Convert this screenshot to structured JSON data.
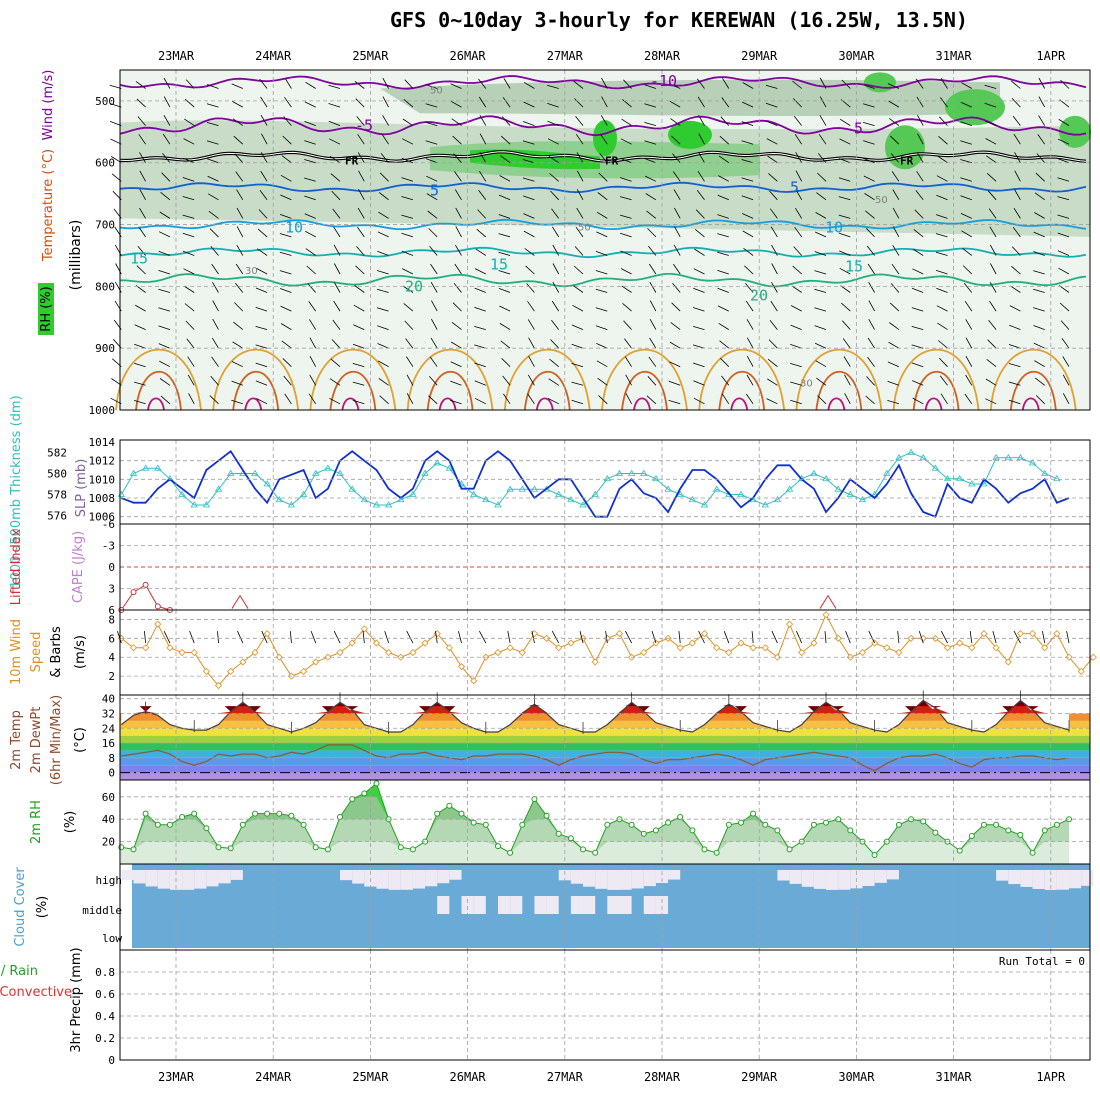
{
  "title": "GFS 0~10day 3-hourly for KEREWAN (16.25W, 13.5N)",
  "dates": [
    "23MAR",
    "24MAR",
    "25MAR",
    "26MAR",
    "27MAR",
    "28MAR",
    "29MAR",
    "30MAR",
    "31MAR",
    "1APR"
  ],
  "panels": {
    "upper": {
      "ylabel_rh": "RH (%)",
      "ylabel_temp": "Temperature (°C)",
      "ylabel_wind": "Wind (m/s)",
      "ylabel_units": "(millibars)",
      "pressure_ticks": [
        "500",
        "600",
        "700",
        "800",
        "900",
        "1000"
      ],
      "freezing_label": "FR",
      "temp_labels": [
        "-10",
        "-5",
        "5",
        "10",
        "15",
        "20"
      ],
      "rh_labels": [
        "50",
        "50",
        "50",
        "30",
        "30"
      ]
    },
    "slp": {
      "ylabel_thick": "1000~500mb Thickness (dm)",
      "ylabel_slp": "SLP (mb)",
      "left_ticks": [
        "582",
        "580",
        "578",
        "576"
      ],
      "right_ticks": [
        "1014",
        "1012",
        "1010",
        "1008",
        "1006"
      ]
    },
    "li": {
      "ylabel_li": "Lifted Index",
      "ylabel_cape": "CAPE (J/kg)",
      "ticks": [
        "-6",
        "-3",
        "0",
        "3",
        "6"
      ]
    },
    "wind10m": {
      "ylabel_1": "10m Wind",
      "ylabel_2": "Speed",
      "ylabel_3": "& Barbs",
      "ylabel_units": "(m/s)",
      "ticks": [
        "8",
        "6",
        "4",
        "2"
      ]
    },
    "temp2m": {
      "ylabel_1": "2m Temp",
      "ylabel_2": "2m DewPt",
      "ylabel_3": "(6hr Min/Max)",
      "ylabel_units": "(°C)",
      "ticks": [
        "40",
        "32",
        "24",
        "16",
        "8",
        "0"
      ]
    },
    "rh2m": {
      "ylabel": "2m RH",
      "ylabel_units": "(%)",
      "ticks": [
        "60",
        "40",
        "20"
      ]
    },
    "cloud": {
      "ylabel": "Cloud Cover",
      "ylabel_units": "(%)",
      "levels": [
        "high",
        "middle",
        "low"
      ]
    },
    "precip": {
      "ylabel_total": "Total / Rain",
      "ylabel_conv": "Convective",
      "ylabel_units": "3hr Precip (mm)",
      "ticks": [
        "0.8",
        "0.6",
        "0.4",
        "0.2",
        "0"
      ],
      "run_total": "Run Total = 0"
    }
  },
  "colors": {
    "slp": "#1030d0",
    "thickness": "#30c0c0",
    "wind_speed": "#e09020",
    "rh_line": "#20a020",
    "lifted_index": "#d03030",
    "cloud": "#6aaad6",
    "temp_line": "#404040",
    "dewpoint": "#8b5a2b"
  },
  "chart_data": [
    {
      "type": "line",
      "title": "SLP (mb)",
      "series": [
        {
          "name": "SLP (mb)",
          "values": [
            1008,
            1007.5,
            1007.5,
            1009,
            1010,
            1009,
            1008,
            1011,
            1012,
            1013,
            1011,
            1009,
            1007.5,
            1010,
            1010.5,
            1011,
            1008,
            1009,
            1012,
            1013,
            1012,
            1011,
            1009,
            1008,
            1009,
            1012,
            1013,
            1012,
            1009,
            1009,
            1012,
            1013,
            1012,
            1010,
            1008,
            1009,
            1010,
            1010,
            1008,
            1006,
            1006,
            1009,
            1010,
            1008.5,
            1008,
            1006.5,
            1009,
            1011,
            1011,
            1010,
            1008.5,
            1007,
            1008,
            1010,
            1011.5,
            1011.5,
            1010,
            1009,
            1006.5,
            1008,
            1010,
            1009,
            1008,
            1009.5,
            1011.5,
            1008.5,
            1006.5,
            1006,
            1009.5,
            1008,
            1007.5,
            1010,
            1009,
            1007.5,
            1008.5,
            1009,
            1010,
            1007.5,
            1008
          ]
        }
      ],
      "ylim": [
        1005,
        1014
      ]
    },
    {
      "type": "line",
      "title": "1000~500mb Thickness (dm)",
      "series": [
        {
          "name": "1000~500mb Thickness (dm)",
          "values": [
            578,
            580,
            580.5,
            580.5,
            579.5,
            578,
            577,
            577,
            578.5,
            580,
            580,
            580,
            579,
            577.5,
            577,
            578,
            580,
            580.5,
            580,
            578.5,
            577.5,
            577,
            577,
            577.5,
            578,
            580,
            581,
            580.5,
            579,
            578,
            577.5,
            577,
            578.5,
            578.5,
            578.5,
            578.5,
            578,
            577.5,
            577,
            578,
            579.5,
            580,
            580,
            580,
            579.5,
            578.5,
            578,
            577.5,
            577,
            578.5,
            578,
            578,
            577.5,
            577,
            577.5,
            578.5,
            579.5,
            580,
            579.5,
            578.5,
            578,
            577.5,
            578,
            580,
            581.5,
            582,
            581.5,
            580.5,
            579.5,
            579.5,
            579,
            579,
            581.5,
            581.5,
            581.5,
            581,
            580,
            579.5
          ]
        }
      ],
      "ylim": [
        575,
        583
      ]
    },
    {
      "type": "line",
      "title": "Lifted Index",
      "series": [
        {
          "name": "Lifted Index",
          "values": [
            6,
            3.5,
            2.5,
            5.5,
            6
          ]
        }
      ],
      "ylim": [
        -6,
        6
      ]
    },
    {
      "type": "line",
      "title": "10m Wind Speed (m/s)",
      "series": [
        {
          "name": "10m Wind Speed (m/s)",
          "values": [
            6,
            5,
            5,
            7.5,
            5,
            4.5,
            4.5,
            2.5,
            1,
            2.5,
            3.5,
            4.5,
            6.5,
            4,
            2,
            2.5,
            3.5,
            4,
            4.5,
            5.5,
            7,
            5.5,
            4.5,
            4,
            4.5,
            5.5,
            6.5,
            5,
            3,
            1.5,
            4,
            4.5,
            5,
            4.5,
            6.5,
            6,
            5,
            5.5,
            6,
            3.5,
            6,
            6.5,
            4,
            4.5,
            5.5,
            6,
            5,
            5.5,
            6.5,
            5,
            4.5,
            5.5,
            5,
            5,
            4,
            7.5,
            4.5,
            5.5,
            8.5,
            6,
            4,
            4.5,
            5.5,
            5,
            4.5,
            6,
            6,
            6,
            5,
            5.5,
            5,
            6.5,
            5,
            3.5,
            6.5,
            6.5,
            5,
            6.5,
            4,
            2.5,
            4
          ]
        }
      ],
      "ylim": [
        0,
        9
      ]
    },
    {
      "type": "area",
      "title": "2m Temp / 2m DewPt (°C)",
      "series": [
        {
          "name": "2m Temp",
          "values": [
            26,
            31,
            33,
            31,
            26,
            24,
            23,
            23,
            26,
            33,
            38,
            33,
            26,
            24,
            22,
            24,
            27,
            33,
            38,
            34,
            26,
            24,
            22,
            22,
            26,
            33,
            38,
            33,
            27,
            24,
            22,
            22,
            26,
            32,
            37,
            32,
            26,
            24,
            22,
            22,
            26,
            32,
            38,
            33,
            27,
            25,
            23,
            22,
            26,
            32,
            37,
            33,
            27,
            25,
            23,
            22,
            26,
            33,
            38,
            34,
            27,
            25,
            23,
            22,
            26,
            33,
            39,
            35,
            27,
            25,
            23,
            22,
            26,
            33,
            39,
            34,
            27,
            25,
            23
          ]
        },
        {
          "name": "2m DewPt",
          "values": [
            9,
            10,
            11,
            12,
            10,
            6,
            4,
            6,
            10,
            9,
            10,
            10,
            8,
            9,
            11,
            10,
            12,
            15,
            15,
            15,
            12,
            9,
            8,
            10,
            10,
            11,
            9,
            8,
            7,
            9,
            9,
            10,
            10,
            10,
            9,
            7,
            4,
            7,
            9,
            10,
            11,
            11,
            10,
            7,
            5,
            7,
            7,
            8,
            9,
            10,
            9,
            7,
            4,
            7,
            8,
            9,
            10,
            11,
            10,
            9,
            8,
            4,
            1,
            5,
            8,
            9,
            9,
            10,
            8,
            5,
            3,
            7,
            8,
            8,
            9,
            9,
            8,
            7,
            8
          ]
        }
      ],
      "ylim": [
        -4,
        42
      ]
    },
    {
      "type": "area",
      "title": "2m RH (%)",
      "series": [
        {
          "name": "2m RH",
          "values": [
            15,
            13,
            45,
            35,
            35,
            42,
            45,
            32,
            15,
            14,
            35,
            45,
            45,
            45,
            43,
            35,
            15,
            13,
            42,
            58,
            63,
            72,
            40,
            15,
            13,
            20,
            45,
            52,
            45,
            37,
            35,
            16,
            10,
            35,
            58,
            43,
            27,
            23,
            13,
            10,
            35,
            40,
            35,
            27,
            30,
            37,
            42,
            30,
            13,
            10,
            35,
            37,
            45,
            35,
            30,
            13,
            20,
            35,
            37,
            40,
            30,
            20,
            8,
            20,
            35,
            40,
            38,
            28,
            20,
            12,
            25,
            35,
            35,
            30,
            26,
            10,
            30,
            35,
            40
          ]
        }
      ],
      "ylim": [
        0,
        75
      ]
    },
    {
      "type": "bar",
      "title": "3hr Precip (mm)",
      "series": [
        {
          "name": "Total / Rain",
          "values": [
            0
          ]
        },
        {
          "name": "Convective",
          "values": [
            0
          ]
        }
      ],
      "ylim": [
        0,
        1
      ]
    }
  ]
}
